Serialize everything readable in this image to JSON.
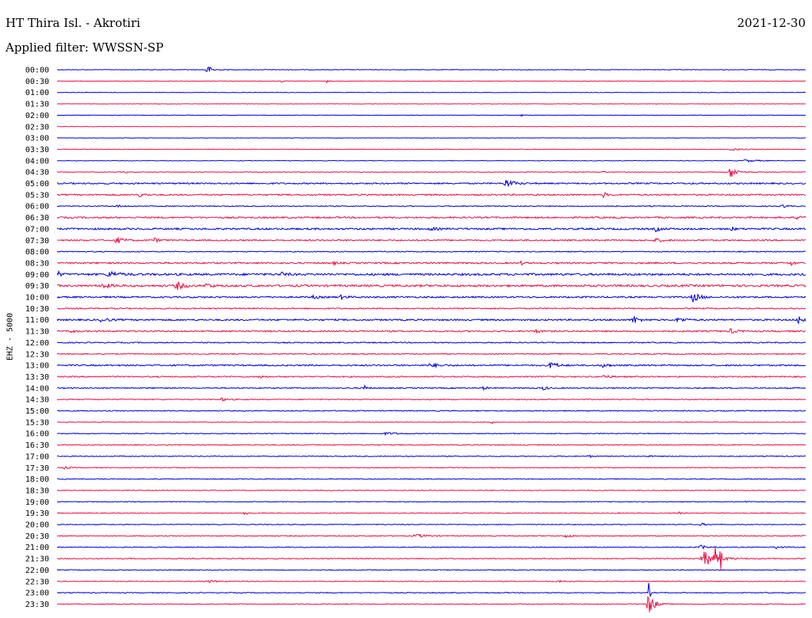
{
  "header": {
    "station": "HT Thira Isl. - Akrotiri",
    "date": "2021-12-30",
    "filter": "Applied filter: WWSSN-SP"
  },
  "channel_label": "EHZ - 5000",
  "colors": {
    "trace_a": "#0000e0",
    "trace_b": "#ee1144",
    "text": "#000000"
  },
  "chart_data": {
    "type": "line",
    "title": "HT Thira Isl. - Akrotiri",
    "subtitle": "Applied filter: WWSSN-SP",
    "ylabel": "EHZ - 5000",
    "grid": false,
    "legend": "none",
    "rows": [
      {
        "label": "00:00",
        "color": "trace_a",
        "noise": 0.4,
        "events": [
          {
            "pos": 0.2,
            "amp": 6,
            "width": 0.01
          }
        ]
      },
      {
        "label": "00:30",
        "color": "trace_b",
        "noise": 0.3,
        "events": [
          {
            "pos": 0.3,
            "amp": 2,
            "width": 0.003
          },
          {
            "pos": 0.36,
            "amp": 2,
            "width": 0.003
          }
        ]
      },
      {
        "label": "01:00",
        "color": "trace_a",
        "noise": 0.3,
        "events": []
      },
      {
        "label": "01:30",
        "color": "trace_b",
        "noise": 0.3,
        "events": []
      },
      {
        "label": "02:00",
        "color": "trace_a",
        "noise": 0.25,
        "events": [
          {
            "pos": 0.62,
            "amp": 1.5,
            "width": 0.005
          }
        ]
      },
      {
        "label": "02:30",
        "color": "trace_b",
        "noise": 0.25,
        "events": []
      },
      {
        "label": "03:00",
        "color": "trace_a",
        "noise": 0.25,
        "events": []
      },
      {
        "label": "03:30",
        "color": "trace_b",
        "noise": 0.35,
        "events": [
          {
            "pos": 0.9,
            "amp": 1.5,
            "width": 0.02
          }
        ]
      },
      {
        "label": "04:00",
        "color": "trace_a",
        "noise": 0.35,
        "events": [
          {
            "pos": 0.92,
            "amp": 1.5,
            "width": 0.02
          }
        ]
      },
      {
        "label": "04:30",
        "color": "trace_b",
        "noise": 0.4,
        "events": [
          {
            "pos": 0.09,
            "amp": 2,
            "width": 0.005
          },
          {
            "pos": 0.73,
            "amp": 2,
            "width": 0.004
          },
          {
            "pos": 0.9,
            "amp": 8,
            "width": 0.012
          }
        ]
      },
      {
        "label": "05:00",
        "color": "trace_a",
        "noise": 0.9,
        "events": [
          {
            "pos": 0.6,
            "amp": 5,
            "width": 0.015
          }
        ]
      },
      {
        "label": "05:30",
        "color": "trace_b",
        "noise": 0.9,
        "events": [
          {
            "pos": 0.11,
            "amp": 2.5,
            "width": 0.01
          },
          {
            "pos": 0.73,
            "amp": 4,
            "width": 0.005
          }
        ]
      },
      {
        "label": "06:00",
        "color": "trace_a",
        "noise": 0.6,
        "events": [
          {
            "pos": 0.08,
            "amp": 1.5,
            "width": 0.01
          },
          {
            "pos": 0.97,
            "amp": 2,
            "width": 0.008
          }
        ]
      },
      {
        "label": "06:30",
        "color": "trace_b",
        "noise": 1.0,
        "events": [
          {
            "pos": 0.99,
            "amp": 4,
            "width": 0.008
          }
        ]
      },
      {
        "label": "07:00",
        "color": "trace_a",
        "noise": 1.1,
        "events": [
          {
            "pos": 0.5,
            "amp": 2,
            "width": 0.01
          },
          {
            "pos": 0.8,
            "amp": 3,
            "width": 0.008
          },
          {
            "pos": 0.9,
            "amp": 2.5,
            "width": 0.006
          }
        ]
      },
      {
        "label": "07:30",
        "color": "trace_b",
        "noise": 0.9,
        "events": [
          {
            "pos": 0.08,
            "amp": 4,
            "width": 0.012
          },
          {
            "pos": 0.13,
            "amp": 2.5,
            "width": 0.01
          },
          {
            "pos": 0.8,
            "amp": 2,
            "width": 0.015
          }
        ]
      },
      {
        "label": "08:00",
        "color": "trace_a",
        "noise": 0.6,
        "events": []
      },
      {
        "label": "08:30",
        "color": "trace_b",
        "noise": 1.0,
        "events": [
          {
            "pos": 0.37,
            "amp": 2,
            "width": 0.006
          },
          {
            "pos": 0.62,
            "amp": 2,
            "width": 0.005
          },
          {
            "pos": 0.98,
            "amp": 3,
            "width": 0.008
          }
        ]
      },
      {
        "label": "09:00",
        "color": "trace_a",
        "noise": 1.3,
        "events": [
          {
            "pos": 0.002,
            "amp": 4,
            "width": 0.004
          },
          {
            "pos": 0.07,
            "amp": 4,
            "width": 0.015
          },
          {
            "pos": 0.3,
            "amp": 2,
            "width": 0.01
          }
        ]
      },
      {
        "label": "09:30",
        "color": "trace_b",
        "noise": 1.3,
        "events": [
          {
            "pos": 0.06,
            "amp": 3,
            "width": 0.015
          },
          {
            "pos": 0.16,
            "amp": 5,
            "width": 0.012
          },
          {
            "pos": 0.2,
            "amp": 3,
            "width": 0.01
          }
        ]
      },
      {
        "label": "10:00",
        "color": "trace_a",
        "noise": 1.0,
        "events": [
          {
            "pos": 0.34,
            "amp": 2,
            "width": 0.01
          },
          {
            "pos": 0.38,
            "amp": 2.5,
            "width": 0.01
          },
          {
            "pos": 0.85,
            "amp": 6,
            "width": 0.012
          }
        ]
      },
      {
        "label": "10:30",
        "color": "trace_b",
        "noise": 0.8,
        "events": []
      },
      {
        "label": "11:00",
        "color": "trace_a",
        "noise": 1.0,
        "events": [
          {
            "pos": 0.06,
            "amp": 4,
            "width": 0.01
          },
          {
            "pos": 0.77,
            "amp": 5,
            "width": 0.01
          },
          {
            "pos": 0.83,
            "amp": 3,
            "width": 0.012
          },
          {
            "pos": 0.99,
            "amp": 6,
            "width": 0.008
          }
        ]
      },
      {
        "label": "11:30",
        "color": "trace_b",
        "noise": 0.9,
        "events": [
          {
            "pos": 0.018,
            "amp": 3,
            "width": 0.006
          },
          {
            "pos": 0.64,
            "amp": 3,
            "width": 0.006
          },
          {
            "pos": 0.9,
            "amp": 3,
            "width": 0.01
          }
        ]
      },
      {
        "label": "12:00",
        "color": "trace_a",
        "noise": 0.7,
        "events": []
      },
      {
        "label": "12:30",
        "color": "trace_b",
        "noise": 0.7,
        "events": []
      },
      {
        "label": "13:00",
        "color": "trace_a",
        "noise": 0.9,
        "events": [
          {
            "pos": 0.5,
            "amp": 2,
            "width": 0.02
          },
          {
            "pos": 0.66,
            "amp": 5,
            "width": 0.012
          },
          {
            "pos": 0.73,
            "amp": 3.5,
            "width": 0.008
          }
        ]
      },
      {
        "label": "13:30",
        "color": "trace_b",
        "noise": 0.8,
        "events": [
          {
            "pos": 0.27,
            "amp": 3,
            "width": 0.006
          },
          {
            "pos": 0.73,
            "amp": 2.5,
            "width": 0.01
          }
        ]
      },
      {
        "label": "14:00",
        "color": "trace_a",
        "noise": 0.7,
        "events": [
          {
            "pos": 0.41,
            "amp": 4,
            "width": 0.006
          },
          {
            "pos": 0.57,
            "amp": 2,
            "width": 0.008
          },
          {
            "pos": 0.65,
            "amp": 2.5,
            "width": 0.008
          }
        ]
      },
      {
        "label": "14:30",
        "color": "trace_b",
        "noise": 0.6,
        "events": [
          {
            "pos": 0.22,
            "amp": 2,
            "width": 0.01
          }
        ]
      },
      {
        "label": "15:00",
        "color": "trace_a",
        "noise": 0.6,
        "events": []
      },
      {
        "label": "15:30",
        "color": "trace_b",
        "noise": 0.4,
        "events": [
          {
            "pos": 0.58,
            "amp": 3,
            "width": 0.003
          }
        ]
      },
      {
        "label": "16:00",
        "color": "trace_a",
        "noise": 0.5,
        "events": [
          {
            "pos": 0.44,
            "amp": 1.5,
            "width": 0.02
          }
        ]
      },
      {
        "label": "16:30",
        "color": "trace_b",
        "noise": 0.6,
        "events": []
      },
      {
        "label": "17:00",
        "color": "trace_a",
        "noise": 0.5,
        "events": [
          {
            "pos": 0.71,
            "amp": 2,
            "width": 0.006
          },
          {
            "pos": 0.79,
            "amp": 1.5,
            "width": 0.006
          }
        ]
      },
      {
        "label": "17:30",
        "color": "trace_b",
        "noise": 0.5,
        "events": [
          {
            "pos": 0.01,
            "amp": 2,
            "width": 0.008
          }
        ]
      },
      {
        "label": "18:00",
        "color": "trace_a",
        "noise": 0.5,
        "events": []
      },
      {
        "label": "18:30",
        "color": "trace_b",
        "noise": 0.5,
        "events": []
      },
      {
        "label": "19:00",
        "color": "trace_a",
        "noise": 0.45,
        "events": [
          {
            "pos": 0.92,
            "amp": 1.5,
            "width": 0.004
          }
        ]
      },
      {
        "label": "19:30",
        "color": "trace_b",
        "noise": 0.5,
        "events": [
          {
            "pos": 0.25,
            "amp": 3,
            "width": 0.005
          },
          {
            "pos": 0.83,
            "amp": 2,
            "width": 0.005
          }
        ]
      },
      {
        "label": "20:00",
        "color": "trace_a",
        "noise": 0.5,
        "events": [
          {
            "pos": 0.86,
            "amp": 2,
            "width": 0.008
          }
        ]
      },
      {
        "label": "20:30",
        "color": "trace_b",
        "noise": 0.6,
        "events": [
          {
            "pos": 0.48,
            "amp": 2,
            "width": 0.02
          },
          {
            "pos": 0.68,
            "amp": 2,
            "width": 0.01
          }
        ]
      },
      {
        "label": "21:00",
        "color": "trace_a",
        "noise": 0.5,
        "events": [
          {
            "pos": 0.86,
            "amp": 3,
            "width": 0.01
          },
          {
            "pos": 0.96,
            "amp": 2,
            "width": 0.01
          }
        ]
      },
      {
        "label": "21:30",
        "color": "trace_b",
        "noise": 0.6,
        "events": [
          {
            "pos": 0.865,
            "amp": 9,
            "width": 0.025
          },
          {
            "pos": 0.879,
            "amp": 24,
            "width": 0.002
          },
          {
            "pos": 0.886,
            "amp": 24,
            "width": 0.002
          }
        ]
      },
      {
        "label": "22:00",
        "color": "trace_a",
        "noise": 0.5,
        "events": []
      },
      {
        "label": "22:30",
        "color": "trace_b",
        "noise": 0.5,
        "events": [
          {
            "pos": 0.2,
            "amp": 1.5,
            "width": 0.02
          },
          {
            "pos": 0.67,
            "amp": 1.5,
            "width": 0.01
          }
        ]
      },
      {
        "label": "23:00",
        "color": "trace_a",
        "noise": 0.5,
        "events": [
          {
            "pos": 0.79,
            "amp": 14,
            "width": 0.003
          }
        ]
      },
      {
        "label": "23:30",
        "color": "trace_b",
        "noise": 0.5,
        "events": [
          {
            "pos": 0.79,
            "amp": 16,
            "width": 0.01
          }
        ]
      }
    ]
  }
}
